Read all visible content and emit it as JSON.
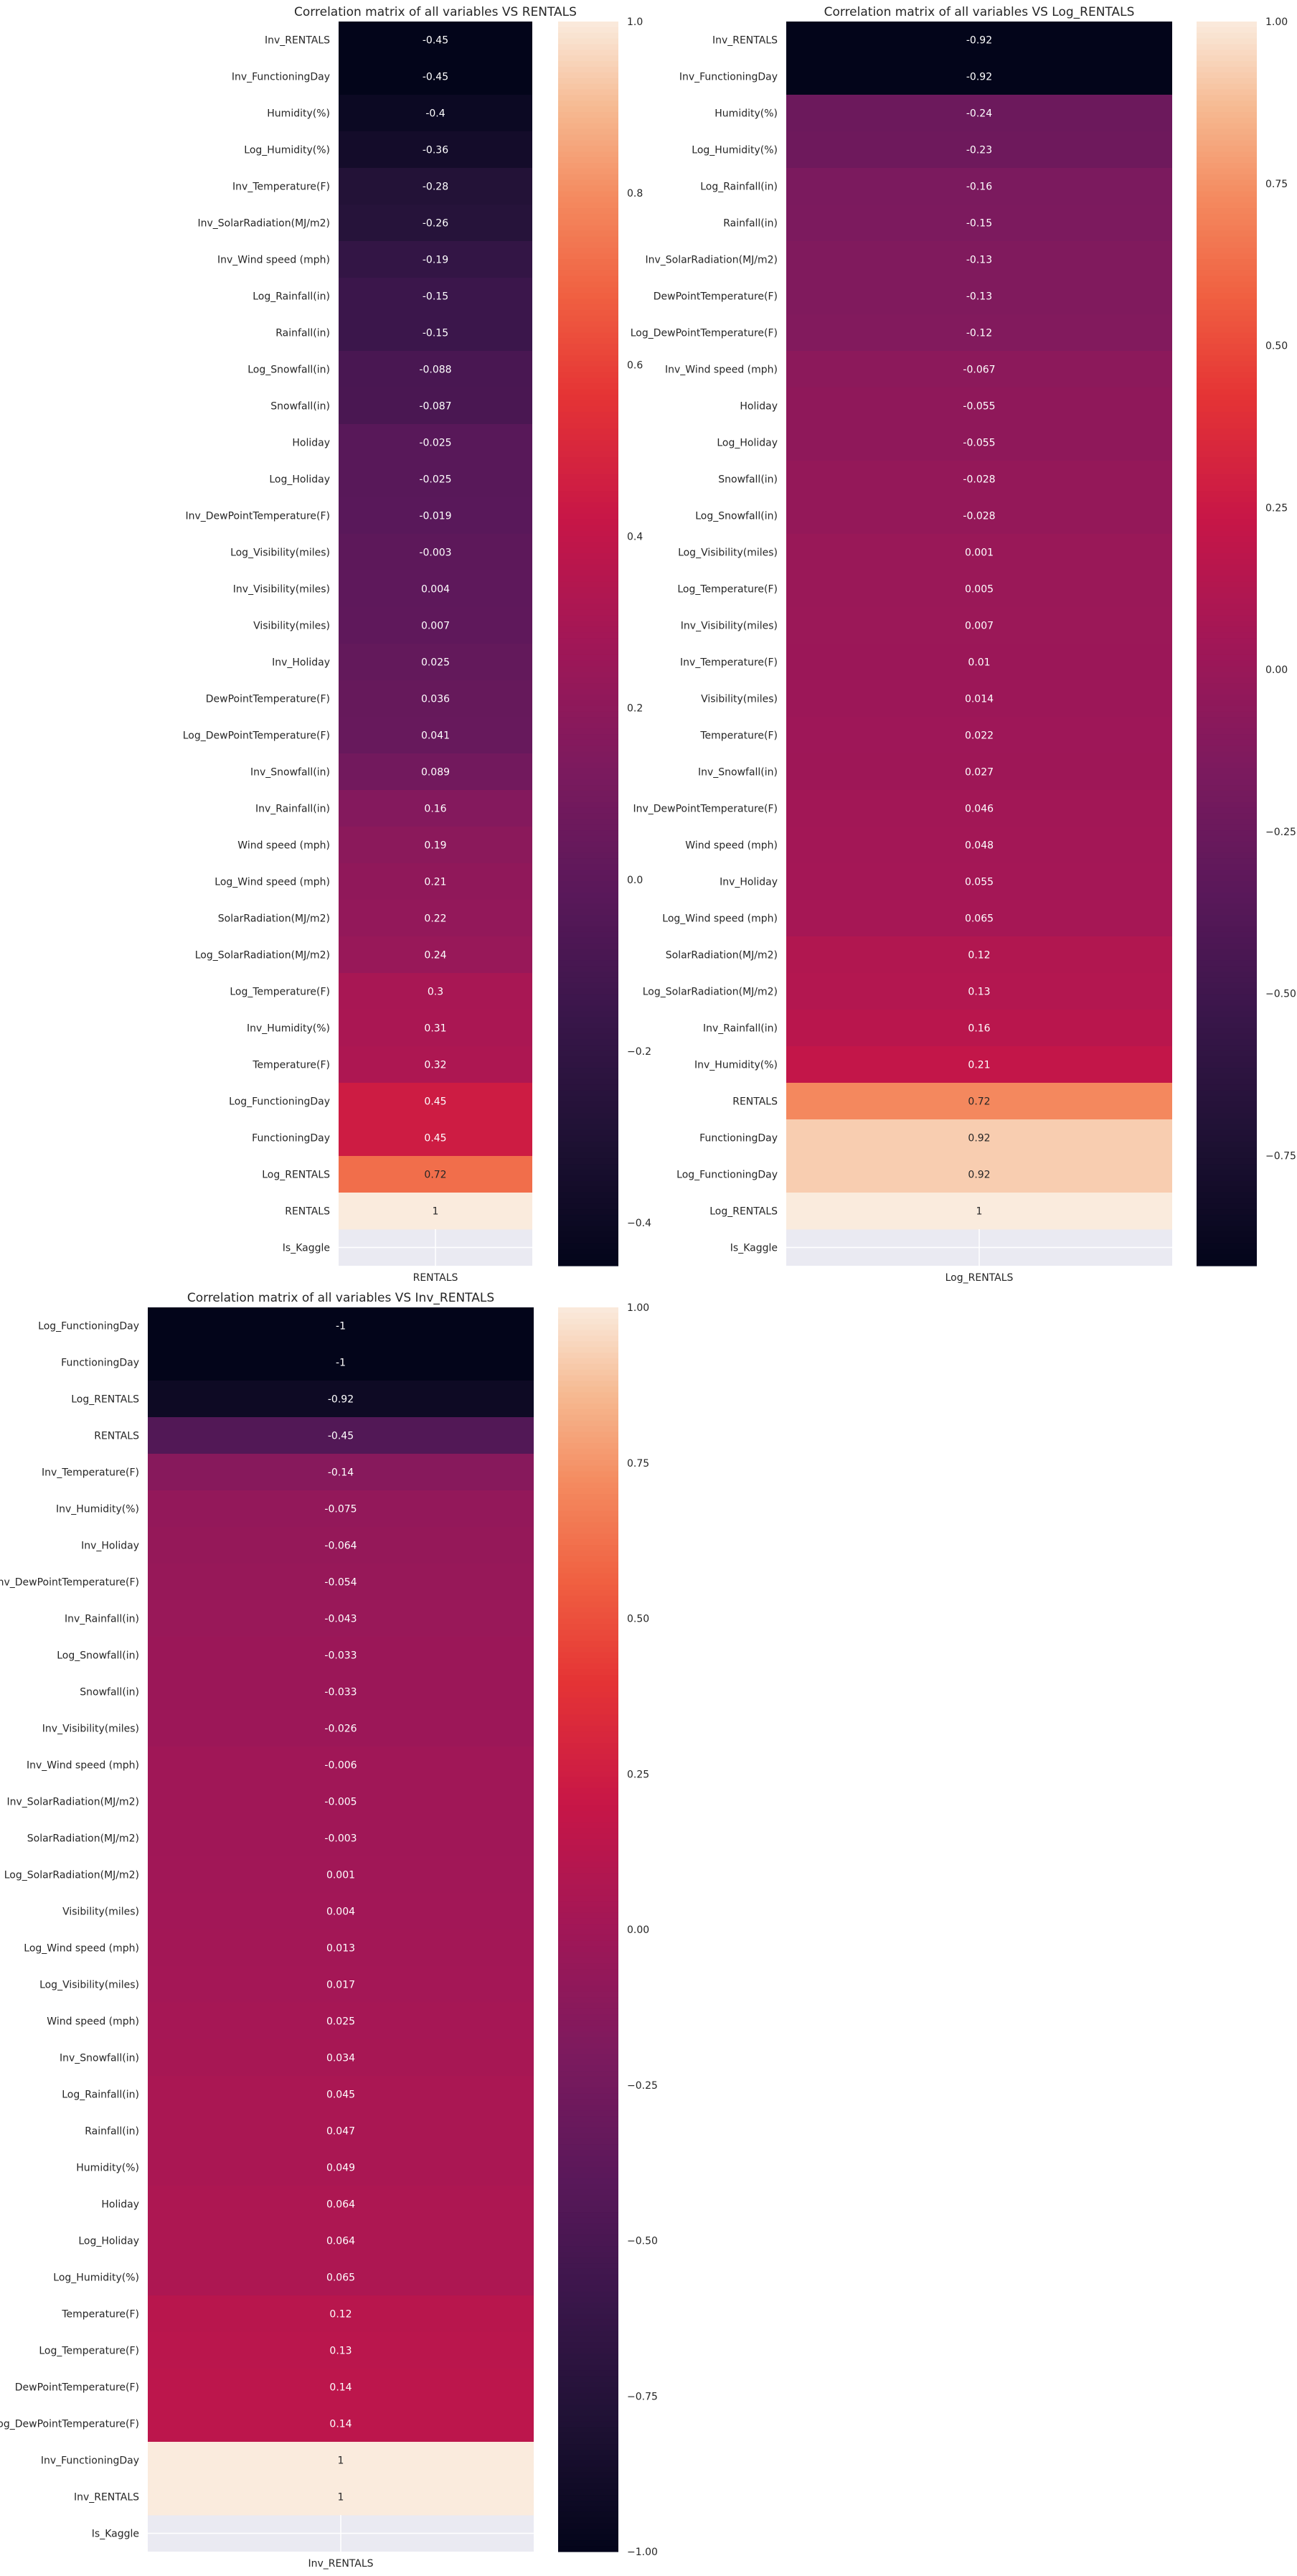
{
  "chart_data": [
    {
      "type": "heatmap",
      "title": "Correlation matrix of all variables VS RENTALS",
      "column": "RENTALS",
      "rows": [
        "Inv_RENTALS",
        "Inv_FunctioningDay",
        "Humidity(%)",
        "Log_Humidity(%)",
        "Inv_Temperature(F)",
        "Inv_SolarRadiation(MJ/m2)",
        "Inv_Wind speed (mph)",
        "Log_Rainfall(in)",
        "Rainfall(in)",
        "Log_Snowfall(in)",
        "Snowfall(in)",
        "Holiday",
        "Log_Holiday",
        "Inv_DewPointTemperature(F)",
        "Log_Visibility(miles)",
        "Inv_Visibility(miles)",
        "Visibility(miles)",
        "Inv_Holiday",
        "DewPointTemperature(F)",
        "Log_DewPointTemperature(F)",
        "Inv_Snowfall(in)",
        "Inv_Rainfall(in)",
        "Wind speed (mph)",
        "Log_Wind speed (mph)",
        "SolarRadiation(MJ/m2)",
        "Log_SolarRadiation(MJ/m2)",
        "Log_Temperature(F)",
        "Inv_Humidity(%)",
        "Temperature(F)",
        "Log_FunctioningDay",
        "FunctioningDay",
        "Log_RENTALS",
        "RENTALS",
        "Is_Kaggle"
      ],
      "values": [
        -0.45,
        -0.45,
        -0.4,
        -0.36,
        -0.28,
        -0.26,
        -0.19,
        -0.15,
        -0.15,
        -0.088,
        -0.087,
        -0.025,
        -0.025,
        -0.019,
        -0.003,
        0.004,
        0.007,
        0.025,
        0.036,
        0.041,
        0.089,
        0.16,
        0.19,
        0.21,
        0.22,
        0.24,
        0.3,
        0.31,
        0.32,
        0.45,
        0.45,
        0.72,
        1,
        null
      ],
      "labels": [
        "-0.45",
        "-0.45",
        "-0.4",
        "-0.36",
        "-0.28",
        "-0.26",
        "-0.19",
        "-0.15",
        "-0.15",
        "-0.088",
        "-0.087",
        "-0.025",
        "-0.025",
        "-0.019",
        "-0.003",
        "0.004",
        "0.007",
        "0.025",
        "0.036",
        "0.041",
        "0.089",
        "0.16",
        "0.19",
        "0.21",
        "0.22",
        "0.24",
        "0.3",
        "0.31",
        "0.32",
        "0.45",
        "0.45",
        "0.72",
        "1",
        ""
      ],
      "color_range": [
        -0.45,
        1.0
      ],
      "colorbar_ticks": [
        -0.4,
        -0.2,
        0.0,
        0.2,
        0.4,
        0.6,
        0.8,
        1.0
      ],
      "colorbar_labels": [
        "−0.4",
        "−0.2",
        "0.0",
        "0.2",
        "0.4",
        "0.6",
        "0.8",
        "1.0"
      ],
      "colormap": "rocket"
    },
    {
      "type": "heatmap",
      "title": "Correlation matrix of all variables VS Log_RENTALS",
      "column": "Log_RENTALS",
      "rows": [
        "Inv_RENTALS",
        "Inv_FunctioningDay",
        "Humidity(%)",
        "Log_Humidity(%)",
        "Log_Rainfall(in)",
        "Rainfall(in)",
        "Inv_SolarRadiation(MJ/m2)",
        "DewPointTemperature(F)",
        "Log_DewPointTemperature(F)",
        "Inv_Wind speed (mph)",
        "Holiday",
        "Log_Holiday",
        "Snowfall(in)",
        "Log_Snowfall(in)",
        "Log_Visibility(miles)",
        "Log_Temperature(F)",
        "Inv_Visibility(miles)",
        "Inv_Temperature(F)",
        "Visibility(miles)",
        "Temperature(F)",
        "Inv_Snowfall(in)",
        "Inv_DewPointTemperature(F)",
        "Wind speed (mph)",
        "Inv_Holiday",
        "Log_Wind speed (mph)",
        "SolarRadiation(MJ/m2)",
        "Log_SolarRadiation(MJ/m2)",
        "Inv_Rainfall(in)",
        "Inv_Humidity(%)",
        "RENTALS",
        "FunctioningDay",
        "Log_FunctioningDay",
        "Log_RENTALS",
        "Is_Kaggle"
      ],
      "values": [
        -0.92,
        -0.92,
        -0.24,
        -0.23,
        -0.16,
        -0.15,
        -0.13,
        -0.13,
        -0.12,
        -0.067,
        -0.055,
        -0.055,
        -0.028,
        -0.028,
        0.001,
        0.005,
        0.007,
        0.01,
        0.014,
        0.022,
        0.027,
        0.046,
        0.048,
        0.055,
        0.065,
        0.12,
        0.13,
        0.16,
        0.21,
        0.72,
        0.92,
        0.92,
        1,
        null
      ],
      "labels": [
        "-0.92",
        "-0.92",
        "-0.24",
        "-0.23",
        "-0.16",
        "-0.15",
        "-0.13",
        "-0.13",
        "-0.12",
        "-0.067",
        "-0.055",
        "-0.055",
        "-0.028",
        "-0.028",
        "0.001",
        "0.005",
        "0.007",
        "0.01",
        "0.014",
        "0.022",
        "0.027",
        "0.046",
        "0.048",
        "0.055",
        "0.065",
        "0.12",
        "0.13",
        "0.16",
        "0.21",
        "0.72",
        "0.92",
        "0.92",
        "1",
        ""
      ],
      "color_range": [
        -0.92,
        1.0
      ],
      "colorbar_ticks": [
        -0.75,
        -0.5,
        -0.25,
        0.0,
        0.25,
        0.5,
        0.75,
        1.0
      ],
      "colorbar_labels": [
        "−0.75",
        "−0.50",
        "−0.25",
        "0.00",
        "0.25",
        "0.50",
        "0.75",
        "1.00"
      ],
      "colormap": "rocket"
    },
    {
      "type": "heatmap",
      "title": "Correlation matrix of all variables VS Inv_RENTALS",
      "column": "Inv_RENTALS",
      "rows": [
        "Log_FunctioningDay",
        "FunctioningDay",
        "Log_RENTALS",
        "RENTALS",
        "Inv_Temperature(F)",
        "Inv_Humidity(%)",
        "Inv_Holiday",
        "Inv_DewPointTemperature(F)",
        "Inv_Rainfall(in)",
        "Log_Snowfall(in)",
        "Snowfall(in)",
        "Inv_Visibility(miles)",
        "Inv_Wind speed (mph)",
        "Inv_SolarRadiation(MJ/m2)",
        "SolarRadiation(MJ/m2)",
        "Log_SolarRadiation(MJ/m2)",
        "Visibility(miles)",
        "Log_Wind speed (mph)",
        "Log_Visibility(miles)",
        "Wind speed (mph)",
        "Inv_Snowfall(in)",
        "Log_Rainfall(in)",
        "Rainfall(in)",
        "Humidity(%)",
        "Holiday",
        "Log_Holiday",
        "Log_Humidity(%)",
        "Temperature(F)",
        "Log_Temperature(F)",
        "DewPointTemperature(F)",
        "Log_DewPointTemperature(F)",
        "Inv_FunctioningDay",
        "Inv_RENTALS",
        "Is_Kaggle"
      ],
      "values": [
        -1,
        -1,
        -0.92,
        -0.45,
        -0.14,
        -0.075,
        -0.064,
        -0.054,
        -0.043,
        -0.033,
        -0.033,
        -0.026,
        -0.006,
        -0.005,
        -0.003,
        0.001,
        0.004,
        0.013,
        0.017,
        0.025,
        0.034,
        0.045,
        0.047,
        0.049,
        0.064,
        0.064,
        0.065,
        0.12,
        0.13,
        0.14,
        0.14,
        1,
        1,
        null
      ],
      "labels": [
        "-1",
        "-1",
        "-0.92",
        "-0.45",
        "-0.14",
        "-0.075",
        "-0.064",
        "-0.054",
        "-0.043",
        "-0.033",
        "-0.033",
        "-0.026",
        "-0.006",
        "-0.005",
        "-0.003",
        "0.001",
        "0.004",
        "0.013",
        "0.017",
        "0.025",
        "0.034",
        "0.045",
        "0.047",
        "0.049",
        "0.064",
        "0.064",
        "0.065",
        "0.12",
        "0.13",
        "0.14",
        "0.14",
        "1",
        "1",
        ""
      ],
      "color_range": [
        -1.0,
        1.0
      ],
      "colorbar_ticks": [
        -1.0,
        -0.75,
        -0.5,
        -0.25,
        0.0,
        0.25,
        0.5,
        0.75,
        1.0
      ],
      "colorbar_labels": [
        "−1.00",
        "−0.75",
        "−0.50",
        "−0.25",
        "0.00",
        "0.25",
        "0.50",
        "0.75",
        "1.00"
      ],
      "colormap": "rocket"
    }
  ]
}
